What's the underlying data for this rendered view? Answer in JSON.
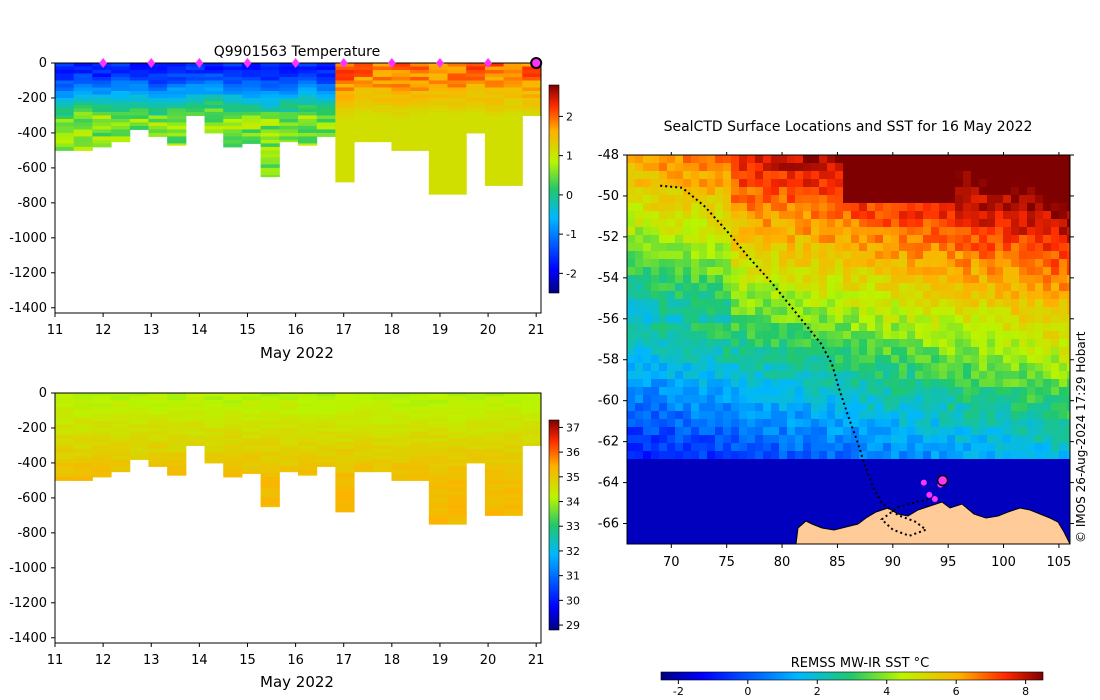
{
  "chart_data": [
    {
      "type": "heatmap",
      "title": "Q9901563  Temperature",
      "xlabel": "May 2022",
      "ylabel": "",
      "x_ticks": [
        "11",
        "12",
        "13",
        "14",
        "15",
        "16",
        "17",
        "18",
        "19",
        "20",
        "21"
      ],
      "y_ticks": [
        "0",
        "-200",
        "-400",
        "-600",
        "-800",
        "-1000",
        "-1200",
        "-1400"
      ],
      "xlim": [
        11,
        21.1
      ],
      "ylim": [
        -1430,
        0
      ],
      "colorbar_ticks": [
        "2",
        "1",
        "0",
        "-1",
        "-2"
      ],
      "colorbar_range": [
        -2.5,
        2.8
      ],
      "profile_days": [
        12,
        13,
        14,
        15,
        16,
        17,
        18,
        19,
        20
      ],
      "latest_profile_day": 21,
      "profile_depths": [
        -500,
        -500,
        -480,
        -450,
        -380,
        -420,
        -470,
        -300,
        -400,
        -480,
        -460,
        -650,
        -450,
        -470,
        -420,
        -680,
        -450,
        -450,
        -500,
        -500,
        -750,
        -750,
        -400,
        -700,
        -700,
        -300
      ]
    },
    {
      "type": "heatmap",
      "title": "",
      "xlabel": "May 2022",
      "ylabel": "",
      "x_ticks": [
        "11",
        "12",
        "13",
        "14",
        "15",
        "16",
        "17",
        "18",
        "19",
        "20",
        "21"
      ],
      "y_ticks": [
        "0",
        "-200",
        "-400",
        "-600",
        "-800",
        "-1000",
        "-1200",
        "-1400"
      ],
      "xlim": [
        11,
        21.1
      ],
      "ylim": [
        -1430,
        0
      ],
      "colorbar_ticks": [
        "37",
        "36",
        "35",
        "34",
        "33",
        "32",
        "31",
        "30",
        "29"
      ],
      "colorbar_range": [
        28.8,
        37.3
      ]
    },
    {
      "type": "heatmap",
      "title": "SealCTD Surface Locations and SST for 16 May 2022",
      "xlabel": "",
      "ylabel": "",
      "x_ticks": [
        "70",
        "75",
        "80",
        "85",
        "90",
        "95",
        "100",
        "105"
      ],
      "y_ticks": [
        "-48",
        "-50",
        "-52",
        "-54",
        "-56",
        "-58",
        "-60",
        "-62",
        "-64",
        "-66"
      ],
      "xlim": [
        66,
        106
      ],
      "ylim": [
        -67,
        -48
      ],
      "colorbar_title": "REMSS MW-IR SST °C",
      "colorbar_ticks": [
        "-2",
        "0",
        "2",
        "4",
        "6",
        "8"
      ],
      "colorbar_range": [
        -2.5,
        8.5
      ],
      "track_points": [
        [
          69,
          -49.5
        ],
        [
          71,
          -49.6
        ],
        [
          73,
          -50.5
        ],
        [
          75,
          -51.7
        ],
        [
          77,
          -53
        ],
        [
          79,
          -54.2
        ],
        [
          80.5,
          -55.2
        ],
        [
          82,
          -56.2
        ],
        [
          83.5,
          -57.2
        ],
        [
          84.5,
          -58.2
        ],
        [
          85.2,
          -59.5
        ],
        [
          86,
          -60.8
        ],
        [
          86.8,
          -62
        ],
        [
          87.5,
          -63.2
        ],
        [
          88.2,
          -64.2
        ],
        [
          89,
          -65
        ],
        [
          90.5,
          -65.6
        ],
        [
          92,
          -65.9
        ],
        [
          93,
          -66.3
        ],
        [
          91.5,
          -66.6
        ],
        [
          90,
          -66.3
        ],
        [
          89,
          -65.8
        ],
        [
          90.5,
          -65.2
        ],
        [
          92.5,
          -64.9
        ],
        [
          94,
          -64.7
        ]
      ],
      "highlight_points": [
        [
          92.8,
          -64
        ],
        [
          93.3,
          -64.6
        ],
        [
          93.8,
          -64.8
        ],
        [
          94.3,
          -64.1
        ]
      ],
      "latest_point": [
        94.5,
        -63.9
      ]
    }
  ],
  "credit": "© IMOS 26-Aug-2024 17:29 Hobart"
}
